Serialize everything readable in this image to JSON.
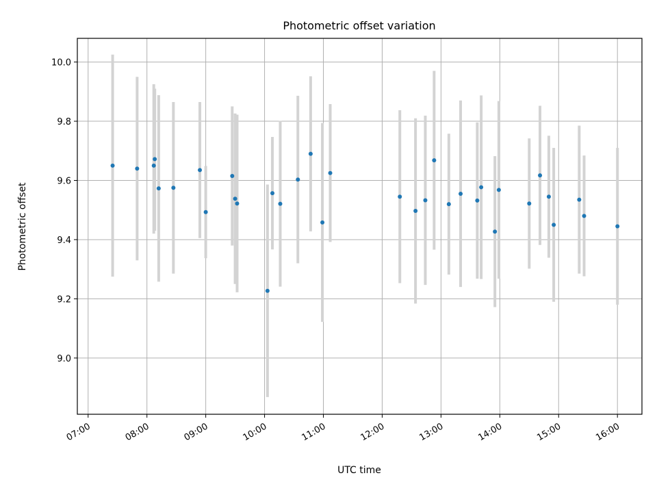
{
  "chart_data": {
    "type": "scatter",
    "title": "Photometric offset variation",
    "xlabel": "UTC time",
    "ylabel": "Photometric offset",
    "x_axis": {
      "kind": "time",
      "range": [
        "06:49",
        "16:25"
      ],
      "ticks": [
        "07:00",
        "08:00",
        "09:00",
        "10:00",
        "11:00",
        "12:00",
        "13:00",
        "14:00",
        "15:00",
        "16:00"
      ],
      "tick_label_rotation_deg": 30
    },
    "y_axis": {
      "range": [
        8.81,
        10.08
      ],
      "ticks": [
        9.0,
        9.2,
        9.4,
        9.6,
        9.8,
        10.0
      ],
      "tick_labels": [
        "9.0",
        "9.2",
        "9.4",
        "9.6",
        "9.8",
        "10.0"
      ]
    },
    "grid": true,
    "marker_color": "#1f77b4",
    "errorbar_color": "#d3d3d3",
    "points": [
      {
        "x": "07:25",
        "y": 9.65,
        "ylow": 9.275,
        "yhigh": 10.025
      },
      {
        "x": "07:50",
        "y": 9.64,
        "ylow": 9.33,
        "yhigh": 9.95
      },
      {
        "x": "08:07",
        "y": 9.65,
        "ylow": 9.42,
        "yhigh": 9.925
      },
      {
        "x": "08:08",
        "y": 9.672,
        "ylow": 9.43,
        "yhigh": 9.91
      },
      {
        "x": "08:12",
        "y": 9.573,
        "ylow": 9.258,
        "yhigh": 9.888
      },
      {
        "x": "08:27",
        "y": 9.575,
        "ylow": 9.285,
        "yhigh": 9.865
      },
      {
        "x": "08:54",
        "y": 9.635,
        "ylow": 9.405,
        "yhigh": 9.865
      },
      {
        "x": "09:00",
        "y": 9.493,
        "ylow": 9.337,
        "yhigh": 9.649
      },
      {
        "x": "09:27",
        "y": 9.615,
        "ylow": 9.38,
        "yhigh": 9.85
      },
      {
        "x": "09:30",
        "y": 9.538,
        "ylow": 9.25,
        "yhigh": 9.826
      },
      {
        "x": "09:32",
        "y": 9.522,
        "ylow": 9.222,
        "yhigh": 9.822
      },
      {
        "x": "10:03",
        "y": 9.227,
        "ylow": 8.868,
        "yhigh": 9.586
      },
      {
        "x": "10:08",
        "y": 9.557,
        "ylow": 9.367,
        "yhigh": 9.747
      },
      {
        "x": "10:16",
        "y": 9.521,
        "ylow": 9.241,
        "yhigh": 9.801
      },
      {
        "x": "10:34",
        "y": 9.603,
        "ylow": 9.32,
        "yhigh": 9.886
      },
      {
        "x": "10:47",
        "y": 9.69,
        "ylow": 9.428,
        "yhigh": 9.952
      },
      {
        "x": "10:59",
        "y": 9.458,
        "ylow": 9.122,
        "yhigh": 9.794
      },
      {
        "x": "11:07",
        "y": 9.625,
        "ylow": 9.392,
        "yhigh": 9.858
      },
      {
        "x": "12:18",
        "y": 9.545,
        "ylow": 9.253,
        "yhigh": 9.837
      },
      {
        "x": "12:34",
        "y": 9.497,
        "ylow": 9.184,
        "yhigh": 9.81
      },
      {
        "x": "12:44",
        "y": 9.533,
        "ylow": 9.247,
        "yhigh": 9.819
      },
      {
        "x": "12:53",
        "y": 9.668,
        "ylow": 9.366,
        "yhigh": 9.97
      },
      {
        "x": "13:08",
        "y": 9.52,
        "ylow": 9.282,
        "yhigh": 9.758
      },
      {
        "x": "13:20",
        "y": 9.555,
        "ylow": 9.24,
        "yhigh": 9.87
      },
      {
        "x": "13:37",
        "y": 9.532,
        "ylow": 9.268,
        "yhigh": 9.796
      },
      {
        "x": "13:41",
        "y": 9.577,
        "ylow": 9.267,
        "yhigh": 9.887
      },
      {
        "x": "13:55",
        "y": 9.427,
        "ylow": 9.172,
        "yhigh": 9.682
      },
      {
        "x": "13:59",
        "y": 9.568,
        "ylow": 9.268,
        "yhigh": 9.868
      },
      {
        "x": "14:30",
        "y": 9.522,
        "ylow": 9.302,
        "yhigh": 9.742
      },
      {
        "x": "14:41",
        "y": 9.617,
        "ylow": 9.382,
        "yhigh": 9.852
      },
      {
        "x": "14:50",
        "y": 9.545,
        "ylow": 9.339,
        "yhigh": 9.751
      },
      {
        "x": "14:55",
        "y": 9.45,
        "ylow": 9.19,
        "yhigh": 9.71
      },
      {
        "x": "15:21",
        "y": 9.535,
        "ylow": 9.285,
        "yhigh": 9.785
      },
      {
        "x": "15:26",
        "y": 9.48,
        "ylow": 9.276,
        "yhigh": 9.684
      },
      {
        "x": "16:00",
        "y": 9.445,
        "ylow": 9.18,
        "yhigh": 9.71
      }
    ]
  }
}
